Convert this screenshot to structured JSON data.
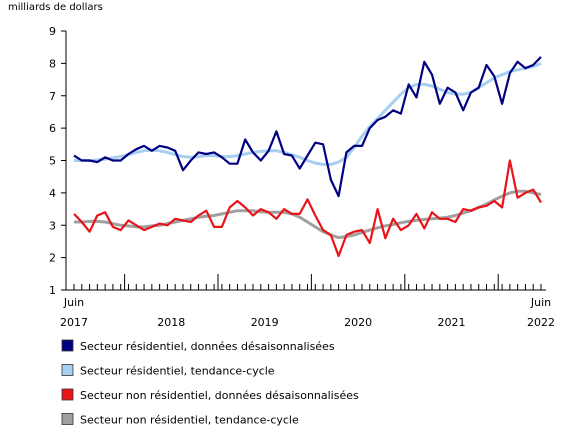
{
  "chart_data": {
    "type": "line",
    "y_label": "milliards de dollars",
    "categories": [
      "Juin",
      null,
      null,
      null,
      null,
      null,
      null,
      null,
      null,
      null,
      null,
      null,
      null,
      null,
      null,
      null,
      null,
      null,
      null,
      null,
      null,
      null,
      null,
      null,
      null,
      null,
      null,
      null,
      null,
      null,
      null,
      null,
      null,
      null,
      null,
      null,
      null,
      null,
      null,
      null,
      null,
      null,
      null,
      null,
      null,
      null,
      null,
      null,
      null,
      null,
      null,
      null,
      null,
      null,
      null,
      null,
      null,
      null,
      null,
      null,
      "Juin"
    ],
    "year_labels": [
      "2017",
      "2018",
      "2019",
      "2020",
      "2021",
      "2022"
    ],
    "ylim": [
      1,
      9
    ],
    "yticks": [
      1,
      2,
      3,
      4,
      5,
      6,
      7,
      8,
      9
    ],
    "grid": false,
    "series": [
      {
        "name": "Secteur résidentiel, données désaisonnalisées",
        "color": "#000080",
        "values": [
          5.15,
          5.0,
          5.0,
          4.95,
          5.1,
          5.0,
          5.0,
          5.2,
          5.35,
          5.45,
          5.3,
          5.45,
          5.4,
          5.3,
          4.7,
          5.0,
          5.25,
          5.2,
          5.25,
          5.1,
          4.9,
          4.9,
          5.65,
          5.25,
          5.0,
          5.3,
          5.9,
          5.2,
          5.15,
          4.75,
          5.15,
          5.55,
          5.5,
          4.4,
          3.9,
          5.25,
          5.45,
          5.45,
          6.0,
          6.25,
          6.35,
          6.55,
          6.45,
          7.35,
          6.95,
          8.05,
          7.65,
          6.75,
          7.25,
          7.1,
          6.55,
          7.1,
          7.25,
          7.95,
          7.6,
          6.75,
          7.7,
          8.05,
          7.85,
          7.95,
          8.2
        ]
      },
      {
        "name": "Secteur résidentiel, tendance-cycle",
        "color": "#a6cff2",
        "values": [
          5.0,
          5.0,
          5.0,
          5.02,
          5.04,
          5.08,
          5.12,
          5.18,
          5.25,
          5.3,
          5.32,
          5.3,
          5.25,
          5.18,
          5.12,
          5.1,
          5.12,
          5.15,
          5.15,
          5.12,
          5.12,
          5.15,
          5.2,
          5.25,
          5.28,
          5.3,
          5.3,
          5.25,
          5.18,
          5.1,
          5.0,
          4.92,
          4.88,
          4.88,
          4.95,
          5.1,
          5.4,
          5.75,
          6.05,
          6.3,
          6.55,
          6.8,
          7.05,
          7.25,
          7.35,
          7.35,
          7.3,
          7.2,
          7.1,
          7.05,
          7.05,
          7.1,
          7.25,
          7.4,
          7.55,
          7.65,
          7.75,
          7.8,
          7.85,
          7.9,
          8.0
        ]
      },
      {
        "name": "Secteur non résidentiel, données désaisonnalisées",
        "color": "#e8141a",
        "values": [
          3.35,
          3.1,
          2.8,
          3.3,
          3.4,
          2.95,
          2.85,
          3.15,
          3.0,
          2.85,
          2.95,
          3.05,
          3.0,
          3.2,
          3.15,
          3.1,
          3.3,
          3.45,
          2.95,
          2.95,
          3.55,
          3.75,
          3.55,
          3.3,
          3.5,
          3.4,
          3.2,
          3.5,
          3.35,
          3.35,
          3.8,
          3.3,
          2.85,
          2.7,
          2.05,
          2.7,
          2.8,
          2.85,
          2.45,
          3.5,
          2.6,
          3.2,
          2.85,
          3.0,
          3.35,
          2.9,
          3.4,
          3.2,
          3.2,
          3.1,
          3.5,
          3.45,
          3.55,
          3.6,
          3.75,
          3.55,
          5.0,
          3.85,
          4.0,
          4.1,
          3.7
        ]
      },
      {
        "name": "Secteur non résidentiel, tendance-cycle",
        "color": "#a0a0a0",
        "values": [
          3.1,
          3.1,
          3.12,
          3.12,
          3.1,
          3.05,
          3.0,
          2.98,
          2.95,
          2.95,
          2.98,
          3.0,
          3.05,
          3.1,
          3.15,
          3.2,
          3.25,
          3.28,
          3.3,
          3.35,
          3.4,
          3.45,
          3.45,
          3.45,
          3.42,
          3.4,
          3.4,
          3.4,
          3.35,
          3.25,
          3.1,
          2.95,
          2.8,
          2.7,
          2.62,
          2.65,
          2.7,
          2.78,
          2.85,
          2.92,
          2.98,
          3.02,
          3.08,
          3.12,
          3.15,
          3.18,
          3.2,
          3.22,
          3.25,
          3.3,
          3.38,
          3.45,
          3.55,
          3.65,
          3.78,
          3.9,
          4.0,
          4.05,
          4.05,
          4.0,
          3.95
        ]
      }
    ]
  }
}
